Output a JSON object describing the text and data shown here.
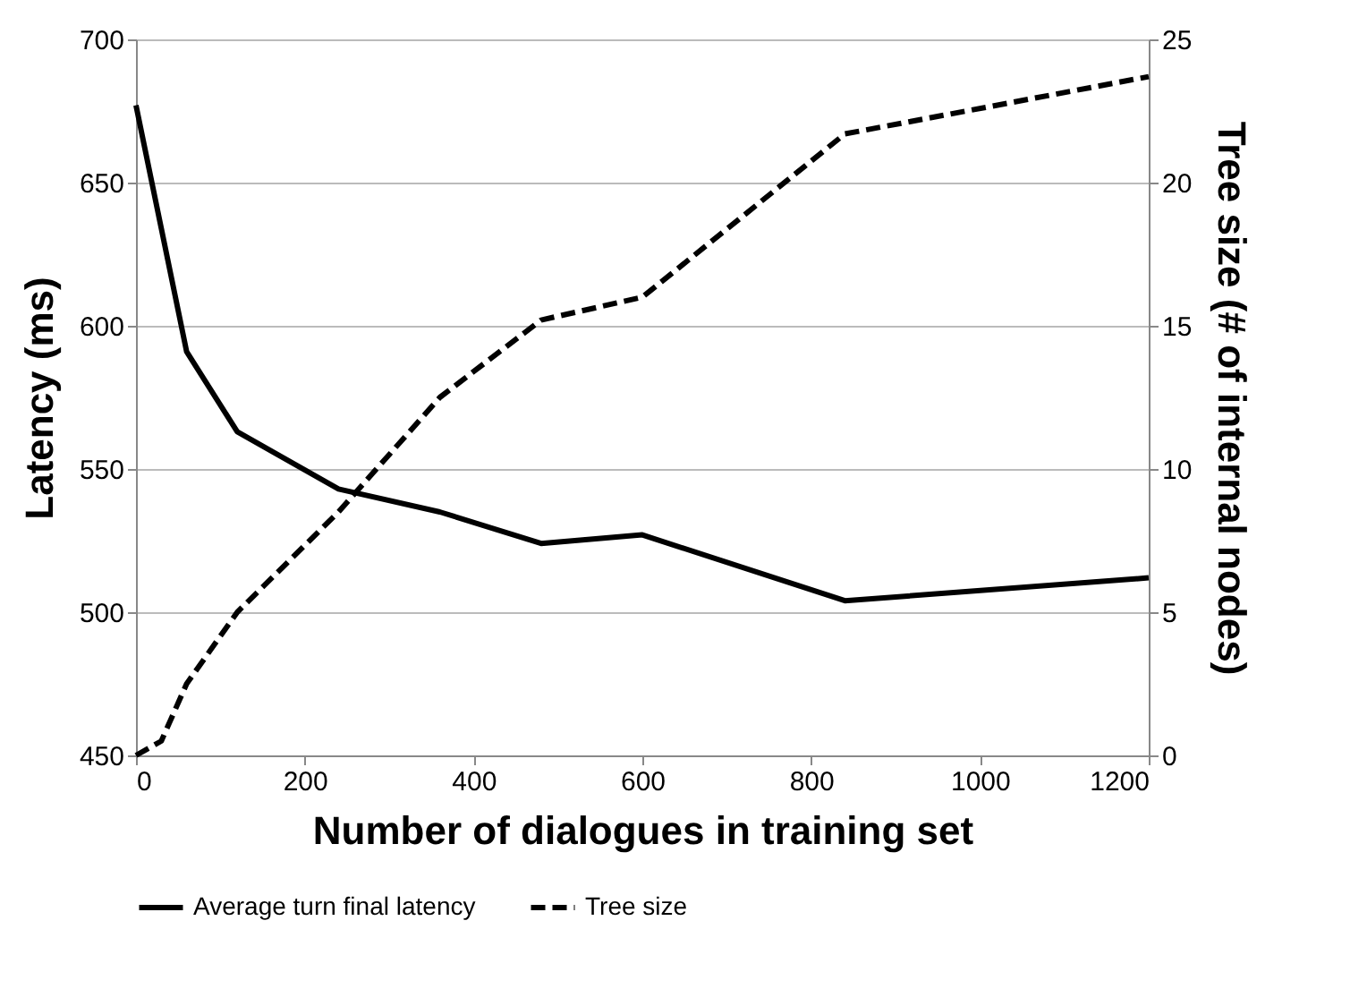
{
  "chart_data": {
    "type": "line",
    "xlabel": "Number of dialogues in training set",
    "ylabel": "Latency (ms)",
    "y2label": "Tree size (# of internal nodes)",
    "xlim": [
      0,
      1200
    ],
    "xticks": [
      0,
      200,
      400,
      600,
      800,
      1000,
      1200
    ],
    "ylim": [
      450,
      700
    ],
    "yticks": [
      450,
      500,
      550,
      600,
      650,
      700
    ],
    "y2lim": [
      0,
      25
    ],
    "y2ticks": [
      0,
      5,
      10,
      15,
      20,
      25
    ],
    "grid": "y",
    "legend": "bottom",
    "marker": "none",
    "series": [
      {
        "name": "Average turn final latency",
        "color": "#000000",
        "line_style": "solid",
        "x": [
          0,
          60,
          120,
          240,
          360,
          480,
          600,
          840,
          1200
        ],
        "values": [
          677,
          591,
          563,
          543,
          535,
          524,
          527,
          504,
          512
        ]
      },
      {
        "name": "Tree size",
        "color": "#000000",
        "line_style": "dashed",
        "axis": "y2",
        "x": [
          0,
          30,
          60,
          120,
          240,
          360,
          480,
          600,
          840,
          1200
        ],
        "values": [
          0,
          0.5,
          2.5,
          5,
          8.5,
          12.5,
          15.2,
          16,
          21.7,
          23.7
        ]
      }
    ]
  }
}
